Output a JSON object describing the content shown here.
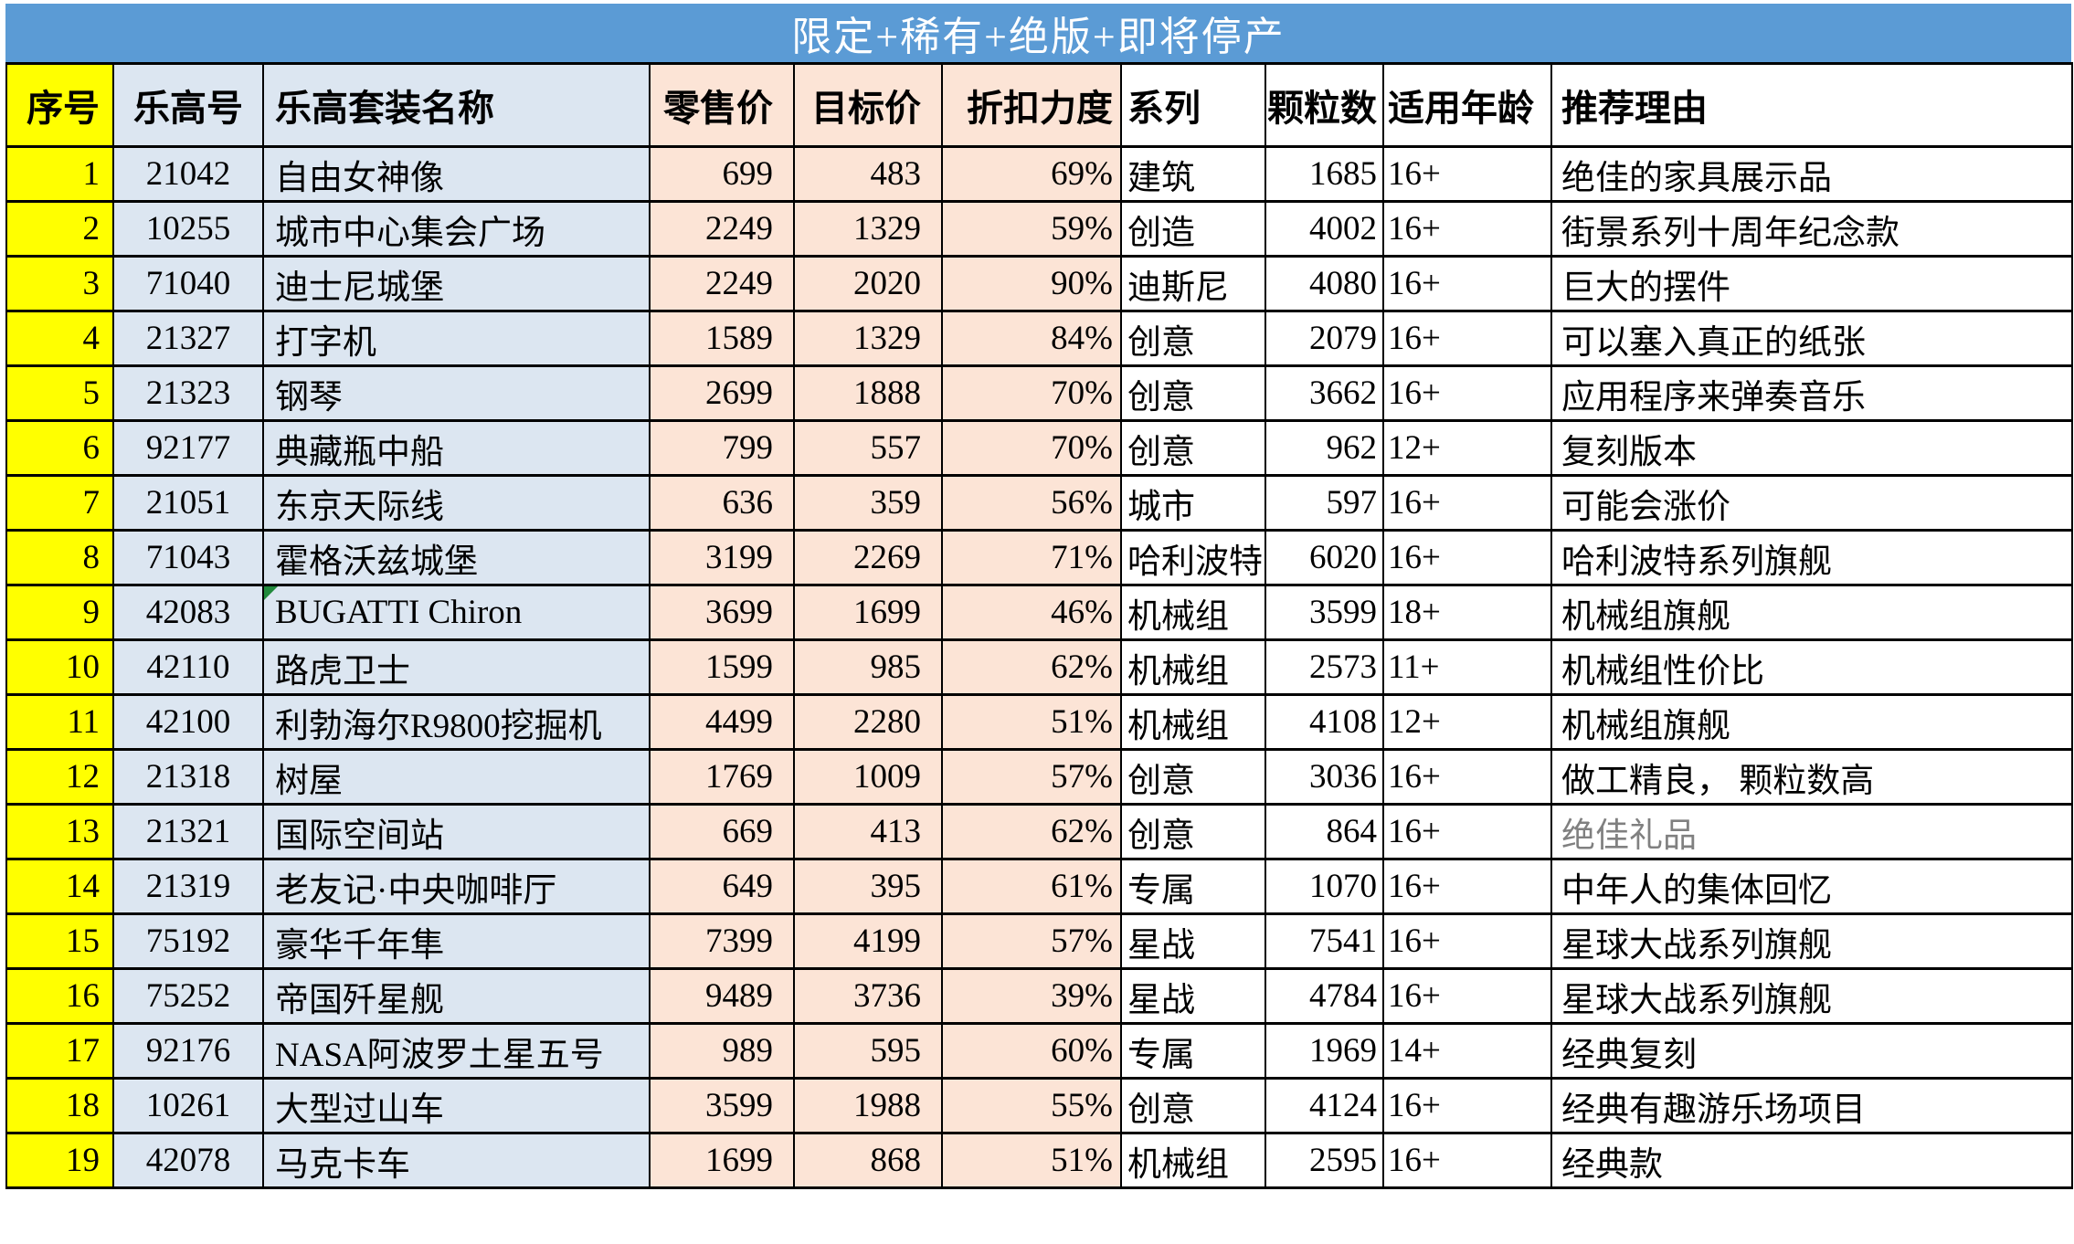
{
  "title": "限定+稀有+绝版+即将停产",
  "colors": {
    "banner_bg": "#5B9BD5",
    "banner_text": "#FFFFFF",
    "header_bg": "#FFFF00",
    "index_col_bg": "#FFFF00",
    "id_name_col_bg": "#DCE6F1",
    "price_col_bg": "#FCE4D6",
    "plain_col_bg": "#FFFFFF",
    "grid_border": "#000000",
    "flag_green": "#218A3C",
    "muted_text": "#808080"
  },
  "table": {
    "headers": [
      "序号",
      "乐高号",
      "乐高套装名称",
      "零售价",
      "目标价",
      "折扣力度",
      "系列",
      "颗粒数",
      "适用年龄",
      "推荐理由"
    ],
    "rows": [
      {
        "index": "1",
        "set_no": "21042",
        "name": "自由女神像",
        "retail": "699",
        "target": "483",
        "discount": "69%",
        "series": "建筑",
        "pieces": "1685",
        "age": "16+",
        "reason": "绝佳的家具展示品"
      },
      {
        "index": "2",
        "set_no": "10255",
        "name": "城市中心集会广场",
        "retail": "2249",
        "target": "1329",
        "discount": "59%",
        "series": "创造",
        "pieces": "4002",
        "age": "16+",
        "reason": "街景系列十周年纪念款"
      },
      {
        "index": "3",
        "set_no": "71040",
        "name": "迪士尼城堡",
        "retail": "2249",
        "target": "2020",
        "discount": "90%",
        "series": "迪斯尼",
        "pieces": "4080",
        "age": "16+",
        "reason": "巨大的摆件"
      },
      {
        "index": "4",
        "set_no": "21327",
        "name": "打字机",
        "retail": "1589",
        "target": "1329",
        "discount": "84%",
        "series": "创意",
        "pieces": "2079",
        "age": "16+",
        "reason": "可以塞入真正的纸张"
      },
      {
        "index": "5",
        "set_no": "21323",
        "name": "钢琴",
        "retail": "2699",
        "target": "1888",
        "discount": "70%",
        "series": "创意",
        "pieces": "3662",
        "age": "16+",
        "reason": "应用程序来弹奏音乐"
      },
      {
        "index": "6",
        "set_no": "92177",
        "name": "典藏瓶中船",
        "retail": "799",
        "target": "557",
        "discount": "70%",
        "series": "创意",
        "pieces": "962",
        "age": "12+",
        "reason": "复刻版本"
      },
      {
        "index": "7",
        "set_no": "21051",
        "name": "东京天际线",
        "retail": "636",
        "target": "359",
        "discount": "56%",
        "series": "城市",
        "pieces": "597",
        "age": "16+",
        "reason": "可能会涨价"
      },
      {
        "index": "8",
        "set_no": "71043",
        "name": "霍格沃兹城堡",
        "retail": "3199",
        "target": "2269",
        "discount": "71%",
        "series": "哈利波特",
        "pieces": "6020",
        "age": "16+",
        "reason": "哈利波特系列旗舰"
      },
      {
        "index": "9",
        "set_no": "42083",
        "name": "BUGATTI Chiron",
        "retail": "3699",
        "target": "1699",
        "discount": "46%",
        "series": "机械组",
        "pieces": "3599",
        "age": "18+",
        "reason": "机械组旗舰",
        "flag": true
      },
      {
        "index": "10",
        "set_no": "42110",
        "name": "路虎卫士",
        "retail": "1599",
        "target": "985",
        "discount": "62%",
        "series": "机械组",
        "pieces": "2573",
        "age": "11+",
        "reason": "机械组性价比"
      },
      {
        "index": "11",
        "set_no": "42100",
        "name": "利勃海尔R9800挖掘机",
        "retail": "4499",
        "target": "2280",
        "discount": "51%",
        "series": "机械组",
        "pieces": "4108",
        "age": "12+",
        "reason": "机械组旗舰"
      },
      {
        "index": "12",
        "set_no": "21318",
        "name": "树屋",
        "retail": "1769",
        "target": "1009",
        "discount": "57%",
        "series": "创意",
        "pieces": "3036",
        "age": "16+",
        "reason": "做工精良， 颗粒数高"
      },
      {
        "index": "13",
        "set_no": "21321",
        "name": "国际空间站",
        "retail": "669",
        "target": "413",
        "discount": "62%",
        "series": "创意",
        "pieces": "864",
        "age": "16+",
        "reason": "绝佳礼品",
        "reason_muted": true
      },
      {
        "index": "14",
        "set_no": "21319",
        "name": "老友记·中央咖啡厅",
        "retail": "649",
        "target": "395",
        "discount": "61%",
        "series": "专属",
        "pieces": "1070",
        "age": "16+",
        "reason": "中年人的集体回忆"
      },
      {
        "index": "15",
        "set_no": "75192",
        "name": "豪华千年隼",
        "retail": "7399",
        "target": "4199",
        "discount": "57%",
        "series": "星战",
        "pieces": "7541",
        "age": "16+",
        "reason": "星球大战系列旗舰"
      },
      {
        "index": "16",
        "set_no": "75252",
        "name": "帝国歼星舰",
        "retail": "9489",
        "target": "3736",
        "discount": "39%",
        "series": "星战",
        "pieces": "4784",
        "age": "16+",
        "reason": "星球大战系列旗舰"
      },
      {
        "index": "17",
        "set_no": "92176",
        "name": "NASA阿波罗土星五号",
        "retail": "989",
        "target": "595",
        "discount": "60%",
        "series": "专属",
        "pieces": "1969",
        "age": "14+",
        "reason": "经典复刻"
      },
      {
        "index": "18",
        "set_no": "10261",
        "name": "大型过山车",
        "retail": "3599",
        "target": "1988",
        "discount": "55%",
        "series": "创意",
        "pieces": "4124",
        "age": "16+",
        "reason": "经典有趣游乐场项目"
      },
      {
        "index": "19",
        "set_no": "42078",
        "name": "马克卡车",
        "retail": "1699",
        "target": "868",
        "discount": "51%",
        "series": "机械组",
        "pieces": "2595",
        "age": "16+",
        "reason": "经典款"
      }
    ]
  }
}
